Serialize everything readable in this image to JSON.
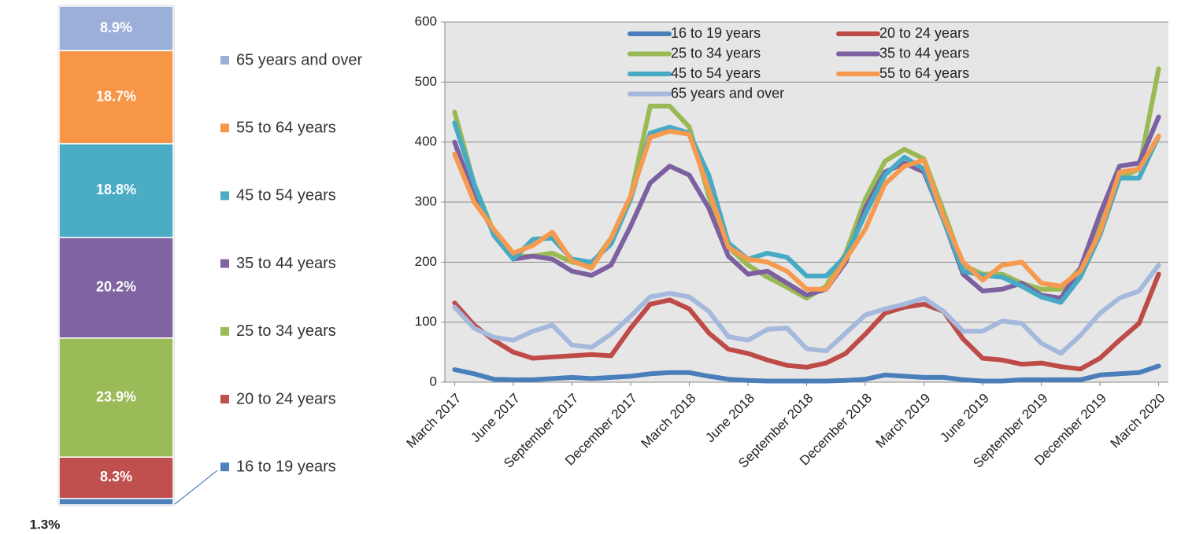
{
  "chart_data": [
    {
      "type": "stacked_bar",
      "series": [
        {
          "name": "16 to 19 years",
          "color": "#4f81bd",
          "values": [
            1.3
          ],
          "value_labels": [
            "1.3%"
          ]
        },
        {
          "name": "20 to 24 years",
          "color": "#c0504d",
          "values": [
            8.3
          ],
          "value_labels": [
            "8.3%"
          ]
        },
        {
          "name": "25 to 34 years",
          "color": "#9bbb59",
          "values": [
            23.9
          ],
          "value_labels": [
            "23.9%"
          ]
        },
        {
          "name": "35 to 44 years",
          "color": "#8064a2",
          "values": [
            20.2
          ],
          "value_labels": [
            "20.2%"
          ]
        },
        {
          "name": "45 to 54 years",
          "color": "#4bacc6",
          "values": [
            18.8
          ],
          "value_labels": [
            "18.8%"
          ]
        },
        {
          "name": "55 to 64 years",
          "color": "#f79646",
          "values": [
            18.7
          ],
          "value_labels": [
            "18.7%"
          ]
        },
        {
          "name": "65 years and over",
          "color": "#9bafd9",
          "values": [
            8.9
          ],
          "value_labels": [
            "8.9%"
          ]
        }
      ]
    },
    {
      "type": "line",
      "categories": [
        "March 2017",
        null,
        null,
        "June 2017",
        null,
        null,
        "September 2017",
        null,
        null,
        "December 2017",
        null,
        null,
        "March 2018",
        null,
        null,
        "June 2018",
        null,
        null,
        "September 2018",
        null,
        null,
        "December 2018",
        null,
        null,
        "March 2019",
        null,
        null,
        "June 2019",
        null,
        null,
        "September 2019",
        null,
        null,
        "December 2019",
        null,
        null,
        "March 2020"
      ],
      "ylim": [
        0,
        600
      ],
      "yticks": [
        0,
        100,
        200,
        300,
        400,
        500,
        600
      ],
      "grid": true,
      "series": [
        {
          "name": "16 to 19 years",
          "color": "#4a7ebb",
          "values": [
            21,
            14,
            5,
            4,
            4,
            6,
            8,
            6,
            8,
            10,
            14,
            16,
            16,
            10,
            5,
            3,
            2,
            2,
            2,
            2,
            3,
            5,
            12,
            10,
            8,
            8,
            4,
            2,
            2,
            4,
            4,
            4,
            4,
            12,
            14,
            16,
            27
          ]
        },
        {
          "name": "20 to 24 years",
          "color": "#be4b48",
          "values": [
            132,
            95,
            70,
            50,
            40,
            42,
            44,
            46,
            44,
            90,
            130,
            137,
            122,
            82,
            55,
            48,
            37,
            28,
            25,
            32,
            48,
            80,
            115,
            125,
            130,
            118,
            72,
            40,
            37,
            30,
            32,
            26,
            22,
            40,
            70,
            98,
            180
          ]
        },
        {
          "name": "25 to 34 years",
          "color": "#98b954",
          "values": [
            450,
            330,
            250,
            210,
            210,
            215,
            200,
            195,
            240,
            310,
            460,
            460,
            425,
            310,
            225,
            195,
            175,
            158,
            140,
            160,
            215,
            305,
            368,
            388,
            372,
            285,
            195,
            180,
            180,
            165,
            155,
            155,
            190,
            265,
            340,
            355,
            522
          ]
        },
        {
          "name": "35 to 44 years",
          "color": "#7d60a0",
          "values": [
            400,
            310,
            250,
            205,
            210,
            205,
            185,
            178,
            195,
            260,
            332,
            360,
            345,
            290,
            210,
            180,
            185,
            165,
            145,
            155,
            200,
            290,
            350,
            365,
            350,
            270,
            180,
            152,
            155,
            165,
            145,
            140,
            190,
            280,
            360,
            365,
            442
          ]
        },
        {
          "name": "45 to 54 years",
          "color": "#46aac5",
          "values": [
            432,
            330,
            245,
            205,
            238,
            240,
            205,
            200,
            230,
            305,
            415,
            425,
            415,
            345,
            232,
            205,
            215,
            208,
            177,
            177,
            210,
            280,
            345,
            375,
            355,
            270,
            185,
            178,
            175,
            160,
            142,
            133,
            175,
            245,
            340,
            340,
            410
          ]
        },
        {
          "name": "55 to 64 years",
          "color": "#f69a4f",
          "values": [
            380,
            300,
            255,
            215,
            228,
            250,
            202,
            190,
            240,
            310,
            408,
            418,
            413,
            320,
            225,
            205,
            200,
            185,
            155,
            155,
            205,
            255,
            330,
            360,
            370,
            275,
            200,
            170,
            195,
            200,
            165,
            160,
            185,
            250,
            350,
            355,
            410
          ]
        },
        {
          "name": "65 years and over",
          "color": "#a5b9dd",
          "values": [
            125,
            90,
            75,
            70,
            85,
            95,
            62,
            58,
            80,
            110,
            142,
            148,
            142,
            118,
            76,
            70,
            88,
            90,
            56,
            52,
            82,
            112,
            122,
            130,
            140,
            118,
            85,
            85,
            102,
            98,
            65,
            48,
            78,
            115,
            140,
            152,
            195
          ]
        }
      ]
    }
  ]
}
